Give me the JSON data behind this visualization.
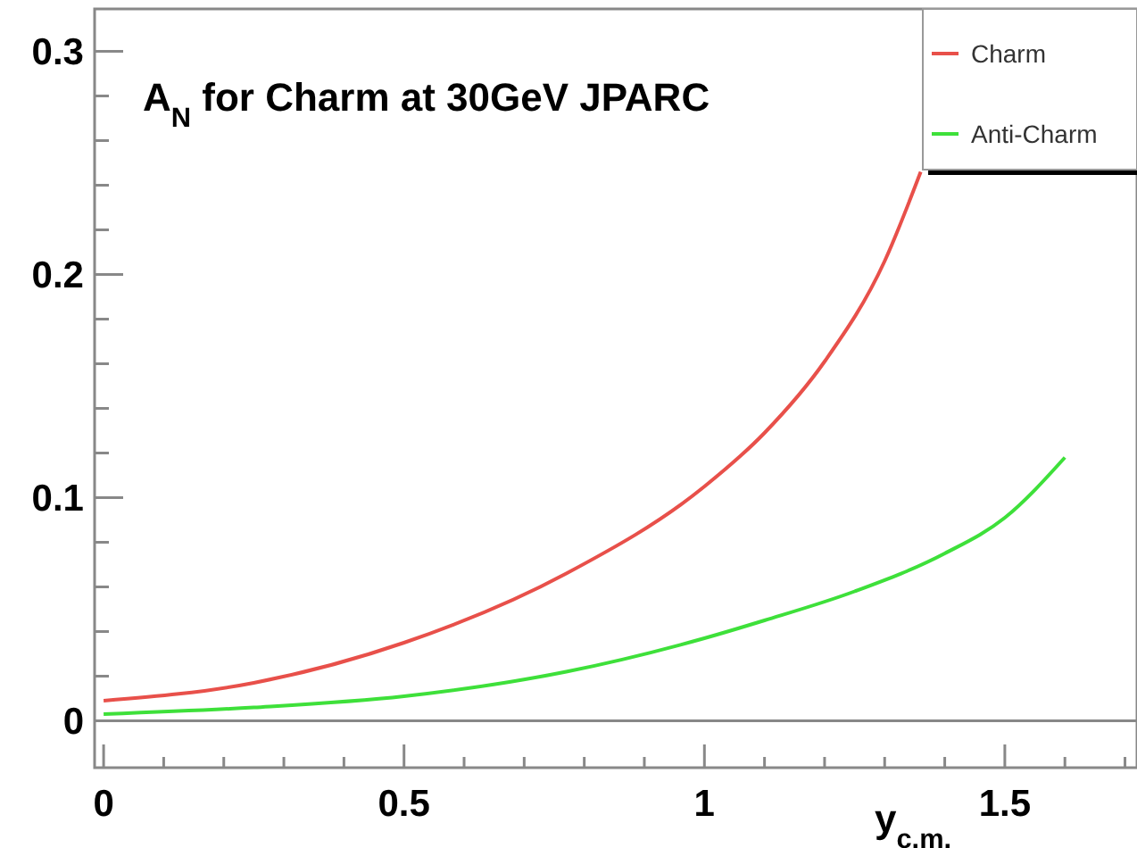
{
  "chart_data": {
    "type": "line",
    "title": "A$_{N}$ for Charm at 30GeV JPARC",
    "xlabel": "y$_{c.m.}$",
    "xlim": [
      -0.015,
      1.72
    ],
    "ylim": [
      -0.021,
      0.319
    ],
    "xticks": [
      0,
      {
        "value": 0.1,
        "label": null
      },
      {
        "value": 0.2,
        "label": null
      },
      {
        "value": 0.3,
        "label": null
      },
      {
        "value": 0.4,
        "label": null
      },
      0.5,
      {
        "value": 0.6,
        "label": null
      },
      {
        "value": 0.7,
        "label": null
      },
      {
        "value": 0.8,
        "label": null
      },
      {
        "value": 0.9,
        "label": null
      },
      1,
      {
        "value": 1.1,
        "label": null
      },
      {
        "value": 1.2,
        "label": null
      },
      {
        "value": 1.3,
        "label": null
      },
      {
        "value": 1.4,
        "label": null
      },
      1.5,
      {
        "value": 1.6,
        "label": null
      },
      {
        "value": 1.7,
        "label": null
      }
    ],
    "yticks": [
      0,
      {
        "value": 0.02,
        "label": null
      },
      {
        "value": 0.04,
        "label": null
      },
      {
        "value": 0.06,
        "label": null
      },
      {
        "value": 0.08,
        "label": null
      },
      0.1,
      {
        "value": 0.12,
        "label": null
      },
      {
        "value": 0.14,
        "label": null
      },
      {
        "value": 0.16,
        "label": null
      },
      {
        "value": 0.18,
        "label": null
      },
      0.2,
      {
        "value": 0.22,
        "label": null
      },
      {
        "value": 0.24,
        "label": null
      },
      {
        "value": 0.26,
        "label": null
      },
      {
        "value": 0.28,
        "label": null
      },
      0.3
    ],
    "ref_lines": [
      {
        "axis": "y",
        "value": 0
      }
    ],
    "legend": "top right",
    "grid": false,
    "series": [
      {
        "name": "Charm",
        "color": "#e8504a",
        "x": [
          0,
          0.25,
          0.5,
          0.77,
          1,
          1.1,
          1.2,
          1.3,
          1.36
        ],
        "values": [
          0.009,
          0.017,
          0.035,
          0.066,
          0.105,
          0.129,
          0.161,
          0.206,
          0.246
        ]
      },
      {
        "name": "Anti-Charm",
        "color": "#3ee03a",
        "x": [
          0,
          0.25,
          0.5,
          0.77,
          1,
          1.1,
          1.25,
          1.4,
          1.5,
          1.6
        ],
        "values": [
          0.003,
          0.006,
          0.011,
          0.022,
          0.037,
          0.045,
          0.058,
          0.075,
          0.091,
          0.118
        ]
      }
    ]
  }
}
